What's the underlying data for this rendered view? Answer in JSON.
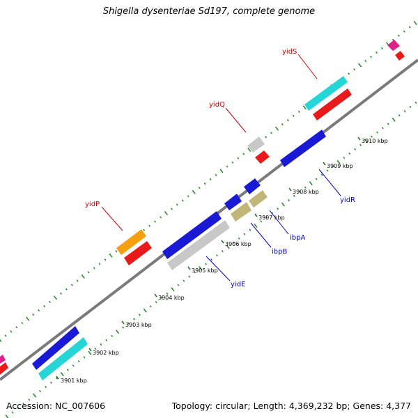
{
  "title": "Shigella dysenteriae Sd197, complete genome",
  "footer": {
    "accession": "Accession: NC_007606",
    "summary": "Topology: circular; Length: 4,369,232 bp; Genes: 4,377"
  },
  "scale_labels": [
    "3901 kbp",
    "3902 kbp",
    "3903 kbp",
    "3904 kbp",
    "3905 kbp",
    "3906 kbp",
    "3907 kbp",
    "3908 kbp",
    "3909 kbp",
    "3910 kbp"
  ],
  "gene_labels": {
    "yidS": "yidS",
    "yidQ": "yidQ",
    "yidP": "yidP",
    "yidR": "yidR",
    "ibpA": "ibpA",
    "ibpB": "ibpB",
    "yidE": "yidE"
  },
  "colors": {
    "backbone": "#8a8a8a",
    "tick_green": "#2e8b2e",
    "red_label": "#cc0000",
    "blue_label": "#0000cc",
    "blue": "#1a1ad6",
    "cyan": "#26d6d6",
    "red": "#e81a1a",
    "orange": "#f5a00f",
    "grey": "#c8c8c8",
    "olive": "#c0b678",
    "magenta": "#e0208a"
  }
}
